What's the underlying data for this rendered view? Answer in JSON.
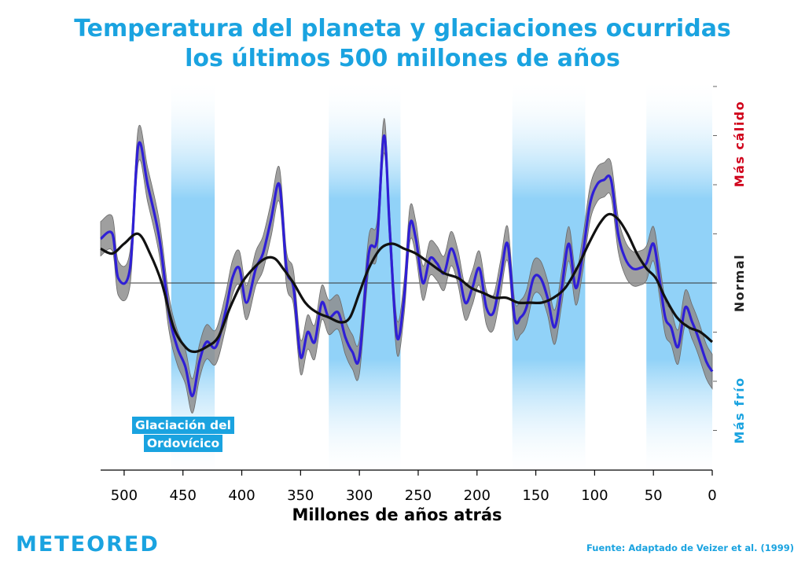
{
  "title": {
    "line1": "Temperatura del planeta y glaciaciones ocurridas",
    "line2": "los últimos 500 millones de años"
  },
  "colors": {
    "title": "#1aa3e0",
    "warm": "#d0021b",
    "cold": "#1aa3e0",
    "normal": "#222222",
    "detail_series": "#2f1fd6",
    "trend_series": "#111111",
    "uncertainty_band": "#8e8e8e",
    "glaciation_band": "#4fb3f0"
  },
  "branding": {
    "logo": "METEORED",
    "source_prefix": "Fuente:",
    "source_text": "Adaptado de Veizer et al. (1999)"
  },
  "chart_data": {
    "type": "line",
    "title": "Temperatura del planeta y glaciaciones ocurridas los últimos 500 millones de años",
    "xlabel": "Millones de años atrás",
    "xlim": [
      520,
      0
    ],
    "x_ticks": [
      500,
      450,
      400,
      350,
      300,
      250,
      200,
      150,
      100,
      50,
      0
    ],
    "y_labels": {
      "top": "Más cálido",
      "middle": "Normal",
      "bottom": "Más frío"
    },
    "ylim": [
      -3,
      4
    ],
    "y_reference": 0,
    "glaciations": [
      {
        "from": 460,
        "to": 423,
        "label_line1": "Glaciación del",
        "label_line2": "Ordovícico"
      },
      {
        "from": 326,
        "to": 265
      },
      {
        "from": 170,
        "to": 108
      },
      {
        "from": 56,
        "to": 0
      }
    ],
    "series": [
      {
        "values": [
          [
            520,
            0.9
          ],
          [
            510,
            1.0
          ],
          [
            505,
            0.1
          ],
          [
            495,
            0.3
          ],
          [
            488,
            2.8
          ],
          [
            480,
            2.0
          ],
          [
            470,
            0.9
          ],
          [
            462,
            -0.6
          ],
          [
            455,
            -1.3
          ],
          [
            448,
            -1.7
          ],
          [
            442,
            -2.3
          ],
          [
            436,
            -1.6
          ],
          [
            430,
            -1.2
          ],
          [
            422,
            -1.3
          ],
          [
            414,
            -0.6
          ],
          [
            408,
            0.1
          ],
          [
            402,
            0.3
          ],
          [
            396,
            -0.4
          ],
          [
            388,
            0.3
          ],
          [
            382,
            0.6
          ],
          [
            375,
            1.3
          ],
          [
            368,
            2.0
          ],
          [
            362,
            0.3
          ],
          [
            356,
            -0.1
          ],
          [
            350,
            -1.5
          ],
          [
            344,
            -1.0
          ],
          [
            338,
            -1.2
          ],
          [
            332,
            -0.4
          ],
          [
            326,
            -0.7
          ],
          [
            318,
            -0.6
          ],
          [
            312,
            -1.1
          ],
          [
            306,
            -1.4
          ],
          [
            300,
            -1.5
          ],
          [
            292,
            0.6
          ],
          [
            285,
            0.9
          ],
          [
            279,
            3.0
          ],
          [
            274,
            1.0
          ],
          [
            268,
            -1.1
          ],
          [
            262,
            -0.3
          ],
          [
            257,
            1.2
          ],
          [
            252,
            0.9
          ],
          [
            246,
            0.0
          ],
          [
            240,
            0.5
          ],
          [
            234,
            0.4
          ],
          [
            228,
            0.2
          ],
          [
            222,
            0.7
          ],
          [
            216,
            0.3
          ],
          [
            210,
            -0.4
          ],
          [
            204,
            -0.1
          ],
          [
            198,
            0.3
          ],
          [
            192,
            -0.5
          ],
          [
            186,
            -0.6
          ],
          [
            180,
            0.1
          ],
          [
            174,
            0.8
          ],
          [
            168,
            -0.7
          ],
          [
            163,
            -0.7
          ],
          [
            158,
            -0.5
          ],
          [
            152,
            0.1
          ],
          [
            146,
            0.1
          ],
          [
            140,
            -0.3
          ],
          [
            134,
            -0.9
          ],
          [
            128,
            -0.1
          ],
          [
            122,
            0.8
          ],
          [
            116,
            -0.1
          ],
          [
            110,
            0.6
          ],
          [
            104,
            1.6
          ],
          [
            98,
            2.0
          ],
          [
            92,
            2.1
          ],
          [
            86,
            2.1
          ],
          [
            80,
            1.0
          ],
          [
            74,
            0.5
          ],
          [
            68,
            0.3
          ],
          [
            62,
            0.3
          ],
          [
            56,
            0.4
          ],
          [
            50,
            0.8
          ],
          [
            45,
            0.1
          ],
          [
            40,
            -0.7
          ],
          [
            35,
            -0.9
          ],
          [
            29,
            -1.3
          ],
          [
            23,
            -0.5
          ],
          [
            17,
            -0.8
          ],
          [
            12,
            -1.1
          ],
          [
            5,
            -1.6
          ],
          [
            0,
            -1.8
          ]
        ],
        "uncertainty": 0.35
      },
      {
        "values": [
          [
            520,
            0.7
          ],
          [
            510,
            0.6
          ],
          [
            500,
            0.8
          ],
          [
            488,
            1.0
          ],
          [
            478,
            0.6
          ],
          [
            468,
            0.0
          ],
          [
            458,
            -0.9
          ],
          [
            448,
            -1.3
          ],
          [
            440,
            -1.4
          ],
          [
            430,
            -1.3
          ],
          [
            420,
            -1.1
          ],
          [
            410,
            -0.5
          ],
          [
            400,
            0.0
          ],
          [
            390,
            0.3
          ],
          [
            380,
            0.5
          ],
          [
            372,
            0.5
          ],
          [
            365,
            0.3
          ],
          [
            356,
            0.0
          ],
          [
            346,
            -0.4
          ],
          [
            336,
            -0.6
          ],
          [
            326,
            -0.7
          ],
          [
            316,
            -0.8
          ],
          [
            308,
            -0.7
          ],
          [
            300,
            -0.2
          ],
          [
            292,
            0.3
          ],
          [
            282,
            0.7
          ],
          [
            272,
            0.8
          ],
          [
            262,
            0.7
          ],
          [
            252,
            0.6
          ],
          [
            240,
            0.4
          ],
          [
            228,
            0.2
          ],
          [
            216,
            0.1
          ],
          [
            205,
            -0.1
          ],
          [
            195,
            -0.2
          ],
          [
            185,
            -0.3
          ],
          [
            175,
            -0.3
          ],
          [
            165,
            -0.4
          ],
          [
            155,
            -0.4
          ],
          [
            145,
            -0.4
          ],
          [
            135,
            -0.3
          ],
          [
            125,
            -0.1
          ],
          [
            115,
            0.3
          ],
          [
            105,
            0.8
          ],
          [
            96,
            1.2
          ],
          [
            88,
            1.4
          ],
          [
            80,
            1.3
          ],
          [
            72,
            1.0
          ],
          [
            64,
            0.6
          ],
          [
            56,
            0.3
          ],
          [
            48,
            0.1
          ],
          [
            40,
            -0.3
          ],
          [
            30,
            -0.7
          ],
          [
            20,
            -0.9
          ],
          [
            10,
            -1.0
          ],
          [
            0,
            -1.2
          ]
        ]
      }
    ]
  }
}
